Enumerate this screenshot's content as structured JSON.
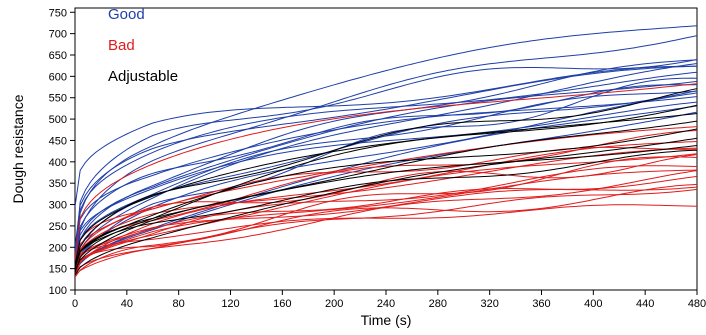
{
  "chart_data": {
    "type": "line",
    "title": "",
    "xlabel": "Time (s)",
    "ylabel": "Dough resistance",
    "xlim": [
      0,
      480
    ],
    "ylim": [
      100,
      760
    ],
    "xticks": [
      0,
      40,
      80,
      120,
      160,
      200,
      240,
      280,
      320,
      360,
      400,
      440,
      480
    ],
    "yticks": [
      100,
      150,
      200,
      250,
      300,
      350,
      400,
      450,
      500,
      550,
      600,
      650,
      700,
      750
    ],
    "grid": false,
    "legend_position": "top-left",
    "series": [
      {
        "name": "Good",
        "color": "#1f3fa8",
        "curves": [
          {
            "start": 165,
            "end": 725,
            "k": 0.6
          },
          {
            "start": 155,
            "end": 700,
            "k": 0.7
          },
          {
            "start": 180,
            "end": 650,
            "k": 0.5
          },
          {
            "start": 160,
            "end": 640,
            "k": 0.8
          },
          {
            "start": 150,
            "end": 625,
            "k": 0.9
          },
          {
            "start": 200,
            "end": 615,
            "k": 0.55
          },
          {
            "start": 170,
            "end": 600,
            "k": 0.75
          },
          {
            "start": 145,
            "end": 590,
            "k": 1.0
          },
          {
            "start": 175,
            "end": 580,
            "k": 0.65
          },
          {
            "start": 160,
            "end": 570,
            "k": 0.85
          },
          {
            "start": 190,
            "end": 560,
            "k": 0.6
          },
          {
            "start": 150,
            "end": 550,
            "k": 0.95
          },
          {
            "start": 140,
            "end": 540,
            "k": 1.1
          },
          {
            "start": 185,
            "end": 530,
            "k": 0.7
          },
          {
            "start": 295,
            "end": 610,
            "k": 0.5
          },
          {
            "start": 150,
            "end": 600,
            "k": 0.45
          },
          {
            "start": 170,
            "end": 575,
            "k": 0.8
          },
          {
            "start": 155,
            "end": 520,
            "k": 1.2
          }
        ]
      },
      {
        "name": "Bad",
        "color": "#e01c1c",
        "curves": [
          {
            "start": 140,
            "end": 480,
            "k": 0.7
          },
          {
            "start": 150,
            "end": 460,
            "k": 0.8
          },
          {
            "start": 135,
            "end": 450,
            "k": 0.9
          },
          {
            "start": 160,
            "end": 440,
            "k": 0.6
          },
          {
            "start": 145,
            "end": 430,
            "k": 1.0
          },
          {
            "start": 155,
            "end": 420,
            "k": 0.75
          },
          {
            "start": 130,
            "end": 410,
            "k": 1.1
          },
          {
            "start": 165,
            "end": 400,
            "k": 0.65
          },
          {
            "start": 140,
            "end": 390,
            "k": 0.85
          },
          {
            "start": 150,
            "end": 380,
            "k": 0.95
          },
          {
            "start": 135,
            "end": 370,
            "k": 1.2
          },
          {
            "start": 145,
            "end": 360,
            "k": 0.7
          },
          {
            "start": 160,
            "end": 350,
            "k": 0.8
          },
          {
            "start": 140,
            "end": 340,
            "k": 1.0
          },
          {
            "start": 155,
            "end": 330,
            "k": 0.9
          },
          {
            "start": 150,
            "end": 300,
            "k": 0.6
          },
          {
            "start": 170,
            "end": 590,
            "k": 0.55
          }
        ]
      },
      {
        "name": "Adjustable",
        "color": "#000000",
        "curves": [
          {
            "start": 150,
            "end": 560,
            "k": 0.8
          },
          {
            "start": 140,
            "end": 540,
            "k": 0.9
          },
          {
            "start": 160,
            "end": 520,
            "k": 0.7
          },
          {
            "start": 145,
            "end": 500,
            "k": 1.0
          },
          {
            "start": 155,
            "end": 480,
            "k": 0.85
          },
          {
            "start": 135,
            "end": 460,
            "k": 1.1
          },
          {
            "start": 150,
            "end": 440,
            "k": 0.75
          },
          {
            "start": 165,
            "end": 420,
            "k": 0.9
          }
        ]
      }
    ]
  }
}
